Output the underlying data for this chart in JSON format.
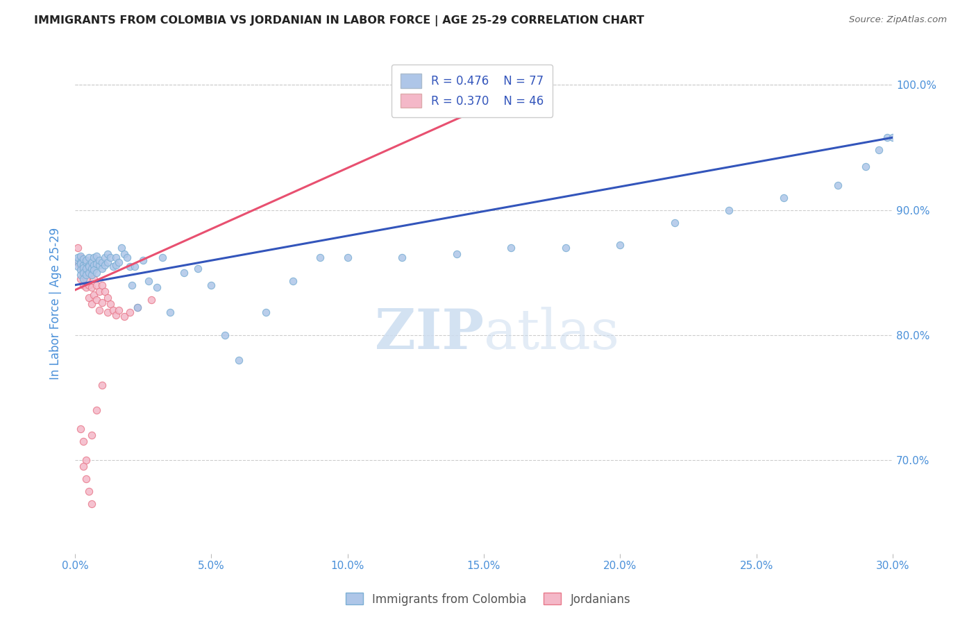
{
  "title": "IMMIGRANTS FROM COLOMBIA VS JORDANIAN IN LABOR FORCE | AGE 25-29 CORRELATION CHART",
  "source": "Source: ZipAtlas.com",
  "xlim": [
    0.0,
    0.3
  ],
  "ylim": [
    0.625,
    1.025
  ],
  "colombia_color": "#aec6e8",
  "colombia_edge": "#7bafd4",
  "jordan_color": "#f4b8c8",
  "jordan_edge": "#e8788a",
  "legend_blue_fill": "#aec6e8",
  "legend_pink_fill": "#f4b8c8",
  "R_colombia": 0.476,
  "N_colombia": 77,
  "R_jordan": 0.37,
  "N_jordan": 46,
  "colombia_line_color": "#3355bb",
  "jordan_line_color": "#e85070",
  "watermark_color": "#dce8f5",
  "background_color": "#ffffff",
  "grid_color": "#cccccc",
  "axis_color": "#4a90d9",
  "title_color": "#222222",
  "scatter_size": 55,
  "colombia_x": [
    0.001,
    0.001,
    0.001,
    0.002,
    0.002,
    0.002,
    0.002,
    0.002,
    0.003,
    0.003,
    0.003,
    0.003,
    0.003,
    0.004,
    0.004,
    0.004,
    0.004,
    0.005,
    0.005,
    0.005,
    0.005,
    0.006,
    0.006,
    0.006,
    0.007,
    0.007,
    0.007,
    0.008,
    0.008,
    0.008,
    0.009,
    0.009,
    0.01,
    0.01,
    0.011,
    0.011,
    0.012,
    0.012,
    0.013,
    0.014,
    0.015,
    0.015,
    0.016,
    0.017,
    0.018,
    0.019,
    0.02,
    0.021,
    0.022,
    0.023,
    0.025,
    0.027,
    0.03,
    0.032,
    0.035,
    0.04,
    0.045,
    0.05,
    0.055,
    0.06,
    0.07,
    0.08,
    0.09,
    0.1,
    0.12,
    0.14,
    0.16,
    0.18,
    0.2,
    0.22,
    0.24,
    0.26,
    0.28,
    0.29,
    0.295,
    0.298,
    0.3
  ],
  "colombia_y": [
    0.86,
    0.862,
    0.855,
    0.858,
    0.863,
    0.857,
    0.852,
    0.848,
    0.856,
    0.861,
    0.854,
    0.85,
    0.845,
    0.858,
    0.853,
    0.86,
    0.848,
    0.856,
    0.862,
    0.85,
    0.855,
    0.858,
    0.853,
    0.848,
    0.856,
    0.862,
    0.852,
    0.857,
    0.863,
    0.85,
    0.856,
    0.86,
    0.858,
    0.853,
    0.862,
    0.856,
    0.858,
    0.865,
    0.862,
    0.855,
    0.856,
    0.862,
    0.858,
    0.87,
    0.865,
    0.862,
    0.855,
    0.84,
    0.855,
    0.822,
    0.86,
    0.843,
    0.838,
    0.862,
    0.818,
    0.85,
    0.853,
    0.84,
    0.8,
    0.78,
    0.818,
    0.843,
    0.862,
    0.862,
    0.862,
    0.865,
    0.87,
    0.87,
    0.872,
    0.89,
    0.9,
    0.91,
    0.92,
    0.935,
    0.948,
    0.958,
    0.958
  ],
  "jordan_x": [
    0.001,
    0.001,
    0.002,
    0.002,
    0.002,
    0.003,
    0.003,
    0.003,
    0.004,
    0.004,
    0.004,
    0.005,
    0.005,
    0.005,
    0.006,
    0.006,
    0.006,
    0.007,
    0.007,
    0.008,
    0.008,
    0.009,
    0.009,
    0.01,
    0.01,
    0.011,
    0.012,
    0.012,
    0.013,
    0.014,
    0.015,
    0.016,
    0.018,
    0.02,
    0.023,
    0.028,
    0.01,
    0.008,
    0.006,
    0.004,
    0.003,
    0.002,
    0.003,
    0.004,
    0.005,
    0.006
  ],
  "jordan_y": [
    0.87,
    0.858,
    0.862,
    0.855,
    0.845,
    0.86,
    0.85,
    0.84,
    0.855,
    0.845,
    0.838,
    0.852,
    0.84,
    0.83,
    0.848,
    0.838,
    0.825,
    0.845,
    0.832,
    0.84,
    0.828,
    0.835,
    0.82,
    0.84,
    0.826,
    0.835,
    0.83,
    0.818,
    0.825,
    0.82,
    0.816,
    0.82,
    0.815,
    0.818,
    0.822,
    0.828,
    0.76,
    0.74,
    0.72,
    0.7,
    0.715,
    0.725,
    0.695,
    0.685,
    0.675,
    0.665
  ],
  "colombia_line_x": [
    0.0,
    0.3
  ],
  "colombia_line_y": [
    0.84,
    0.958
  ],
  "jordan_line_x": [
    0.0,
    0.17
  ],
  "jordan_line_y": [
    0.836,
    1.002
  ]
}
